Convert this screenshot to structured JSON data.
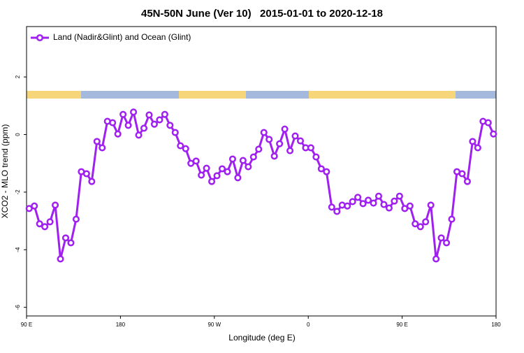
{
  "chart_data": {
    "type": "line",
    "title": "45N-50N June (Ver 10)   2015-01-01 to 2020-12-18",
    "xlabel": "Longitude (deg E)",
    "ylabel": "XCO2 - MLO trend (ppm)",
    "x": [
      92.5,
      97.5,
      102.5,
      107.5,
      112.5,
      117.5,
      122.5,
      127.5,
      132.5,
      137.5,
      142.5,
      147.5,
      152.5,
      157.5,
      162.5,
      167.5,
      172.5,
      177.5,
      182.5,
      187.5,
      192.5,
      197.5,
      202.5,
      207.5,
      212.5,
      217.5,
      222.5,
      227.5,
      232.5,
      237.5,
      242.5,
      247.5,
      252.5,
      257.5,
      262.5,
      267.5,
      272.5,
      277.5,
      282.5,
      287.5,
      292.5,
      297.5,
      302.5,
      307.5,
      312.5,
      317.5,
      322.5,
      327.5,
      332.5,
      337.5,
      342.5,
      347.5,
      352.5,
      357.5,
      362.5,
      367.5,
      372.5,
      377.5,
      382.5,
      387.5,
      392.5,
      397.5,
      402.5,
      407.5,
      412.5,
      417.5,
      422.5,
      427.5,
      432.5,
      437.5,
      442.5,
      447.5,
      452.5,
      457.5,
      462.5,
      467.5,
      472.5,
      477.5,
      482.5,
      487.5,
      492.5,
      497.5,
      502.5,
      507.5,
      512.5,
      517.5,
      522.5,
      527.5,
      532.5,
      537.5
    ],
    "series": [
      {
        "name": "Land (Nadir&Glint) and Ocean (Glint)",
        "color": "#a020f0",
        "values": [
          -2.57,
          -2.48,
          -3.1,
          -3.2,
          -3.03,
          -2.45,
          -4.32,
          -3.59,
          -3.76,
          -2.94,
          -1.29,
          -1.36,
          -1.63,
          -0.24,
          -0.46,
          0.46,
          0.41,
          0.02,
          0.7,
          0.32,
          0.78,
          -0.02,
          0.22,
          0.68,
          0.36,
          0.51,
          0.7,
          0.32,
          0.07,
          -0.39,
          -0.49,
          -1.0,
          -0.92,
          -1.41,
          -1.17,
          -1.63,
          -1.43,
          -1.19,
          -1.29,
          -0.85,
          -1.5,
          -0.9,
          -1.12,
          -0.78,
          -0.51,
          0.07,
          -0.17,
          -0.75,
          -0.32,
          0.19,
          -0.56,
          -0.05,
          -0.22,
          -0.46,
          -0.46,
          -0.78,
          -1.19,
          -1.29,
          -2.52,
          -2.67,
          -2.45,
          -2.48,
          -2.33,
          -2.18,
          -2.4,
          -2.28,
          -2.38,
          -2.14,
          -2.43,
          -2.55,
          -2.31,
          -2.14,
          -2.57,
          -2.48,
          -3.1,
          -3.2,
          -3.03,
          -2.45,
          -4.32,
          -3.59,
          -3.76,
          -2.94,
          -1.29,
          -1.36,
          -1.63,
          -0.24,
          -0.46,
          0.46,
          0.41,
          0.02
        ]
      }
    ],
    "xlim": [
      90,
      540
    ],
    "xticks": [
      {
        "value": 90,
        "label": "90 E"
      },
      180,
      {
        "value": 270,
        "label": "90 W"
      },
      {
        "value": 360,
        "label": "0"
      },
      {
        "value": 450,
        "label": "90 E"
      },
      {
        "value": 540,
        "label": "180"
      }
    ],
    "ylim": [
      -6.3,
      3.75
    ],
    "yticks": [
      -6,
      -4,
      -2,
      0,
      2
    ],
    "legend": "top-left"
  }
}
